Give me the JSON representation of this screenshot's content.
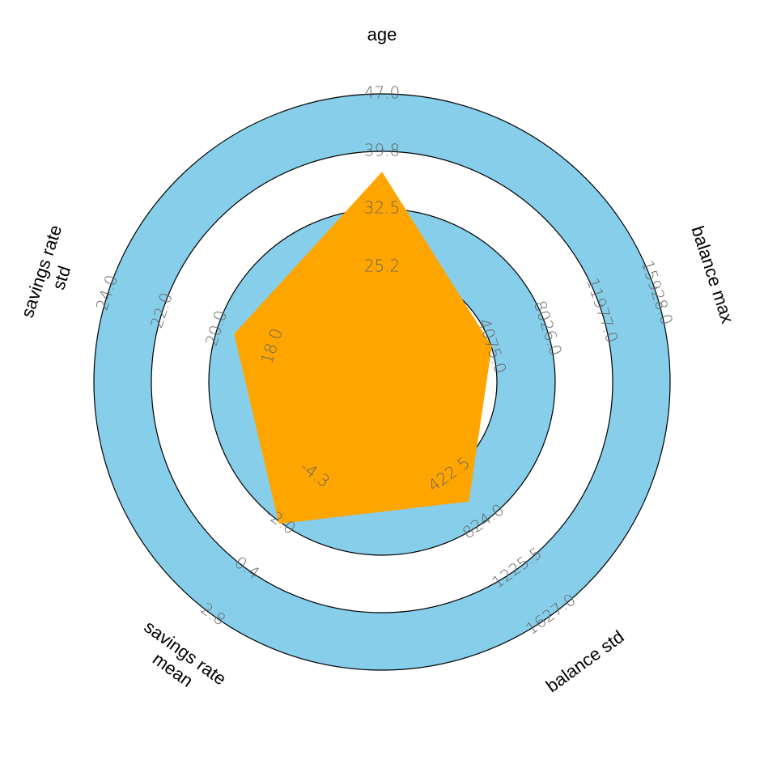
{
  "chart_data": {
    "type": "radar",
    "axes": [
      {
        "label": "age",
        "ticks": [
          "25.2",
          "32.5",
          "39.8",
          "47.0"
        ],
        "range": [
          18.0,
          47.0
        ]
      },
      {
        "label": "balance max",
        "ticks": [
          "4075.0",
          "8026.0",
          "11977.0",
          "15928.0"
        ],
        "range": [
          124.0,
          15928.0
        ]
      },
      {
        "label": "balance std",
        "ticks": [
          "422.5",
          "824.0",
          "1225.5",
          "1627.0"
        ],
        "range": [
          21.0,
          1627.0
        ]
      },
      {
        "label": "savings rate\nmean",
        "ticks": [
          "-4.3",
          "-2.0",
          "0.4",
          "2.8"
        ],
        "range": [
          -6.6,
          2.8
        ]
      },
      {
        "label": "savings rate\nstd",
        "ticks": [
          "18.0",
          "20.0",
          "22.0",
          "24.0"
        ],
        "range": [
          16.0,
          24.0
        ]
      }
    ],
    "series": [
      {
        "values": [
          37.2,
          4100.0,
          650.0,
          -1.8,
          19.4
        ]
      }
    ],
    "ring_colors": [
      "#ffffff",
      "#87ceeb",
      "#ffffff",
      "#87ceeb"
    ],
    "series_color": "#ffa500"
  }
}
